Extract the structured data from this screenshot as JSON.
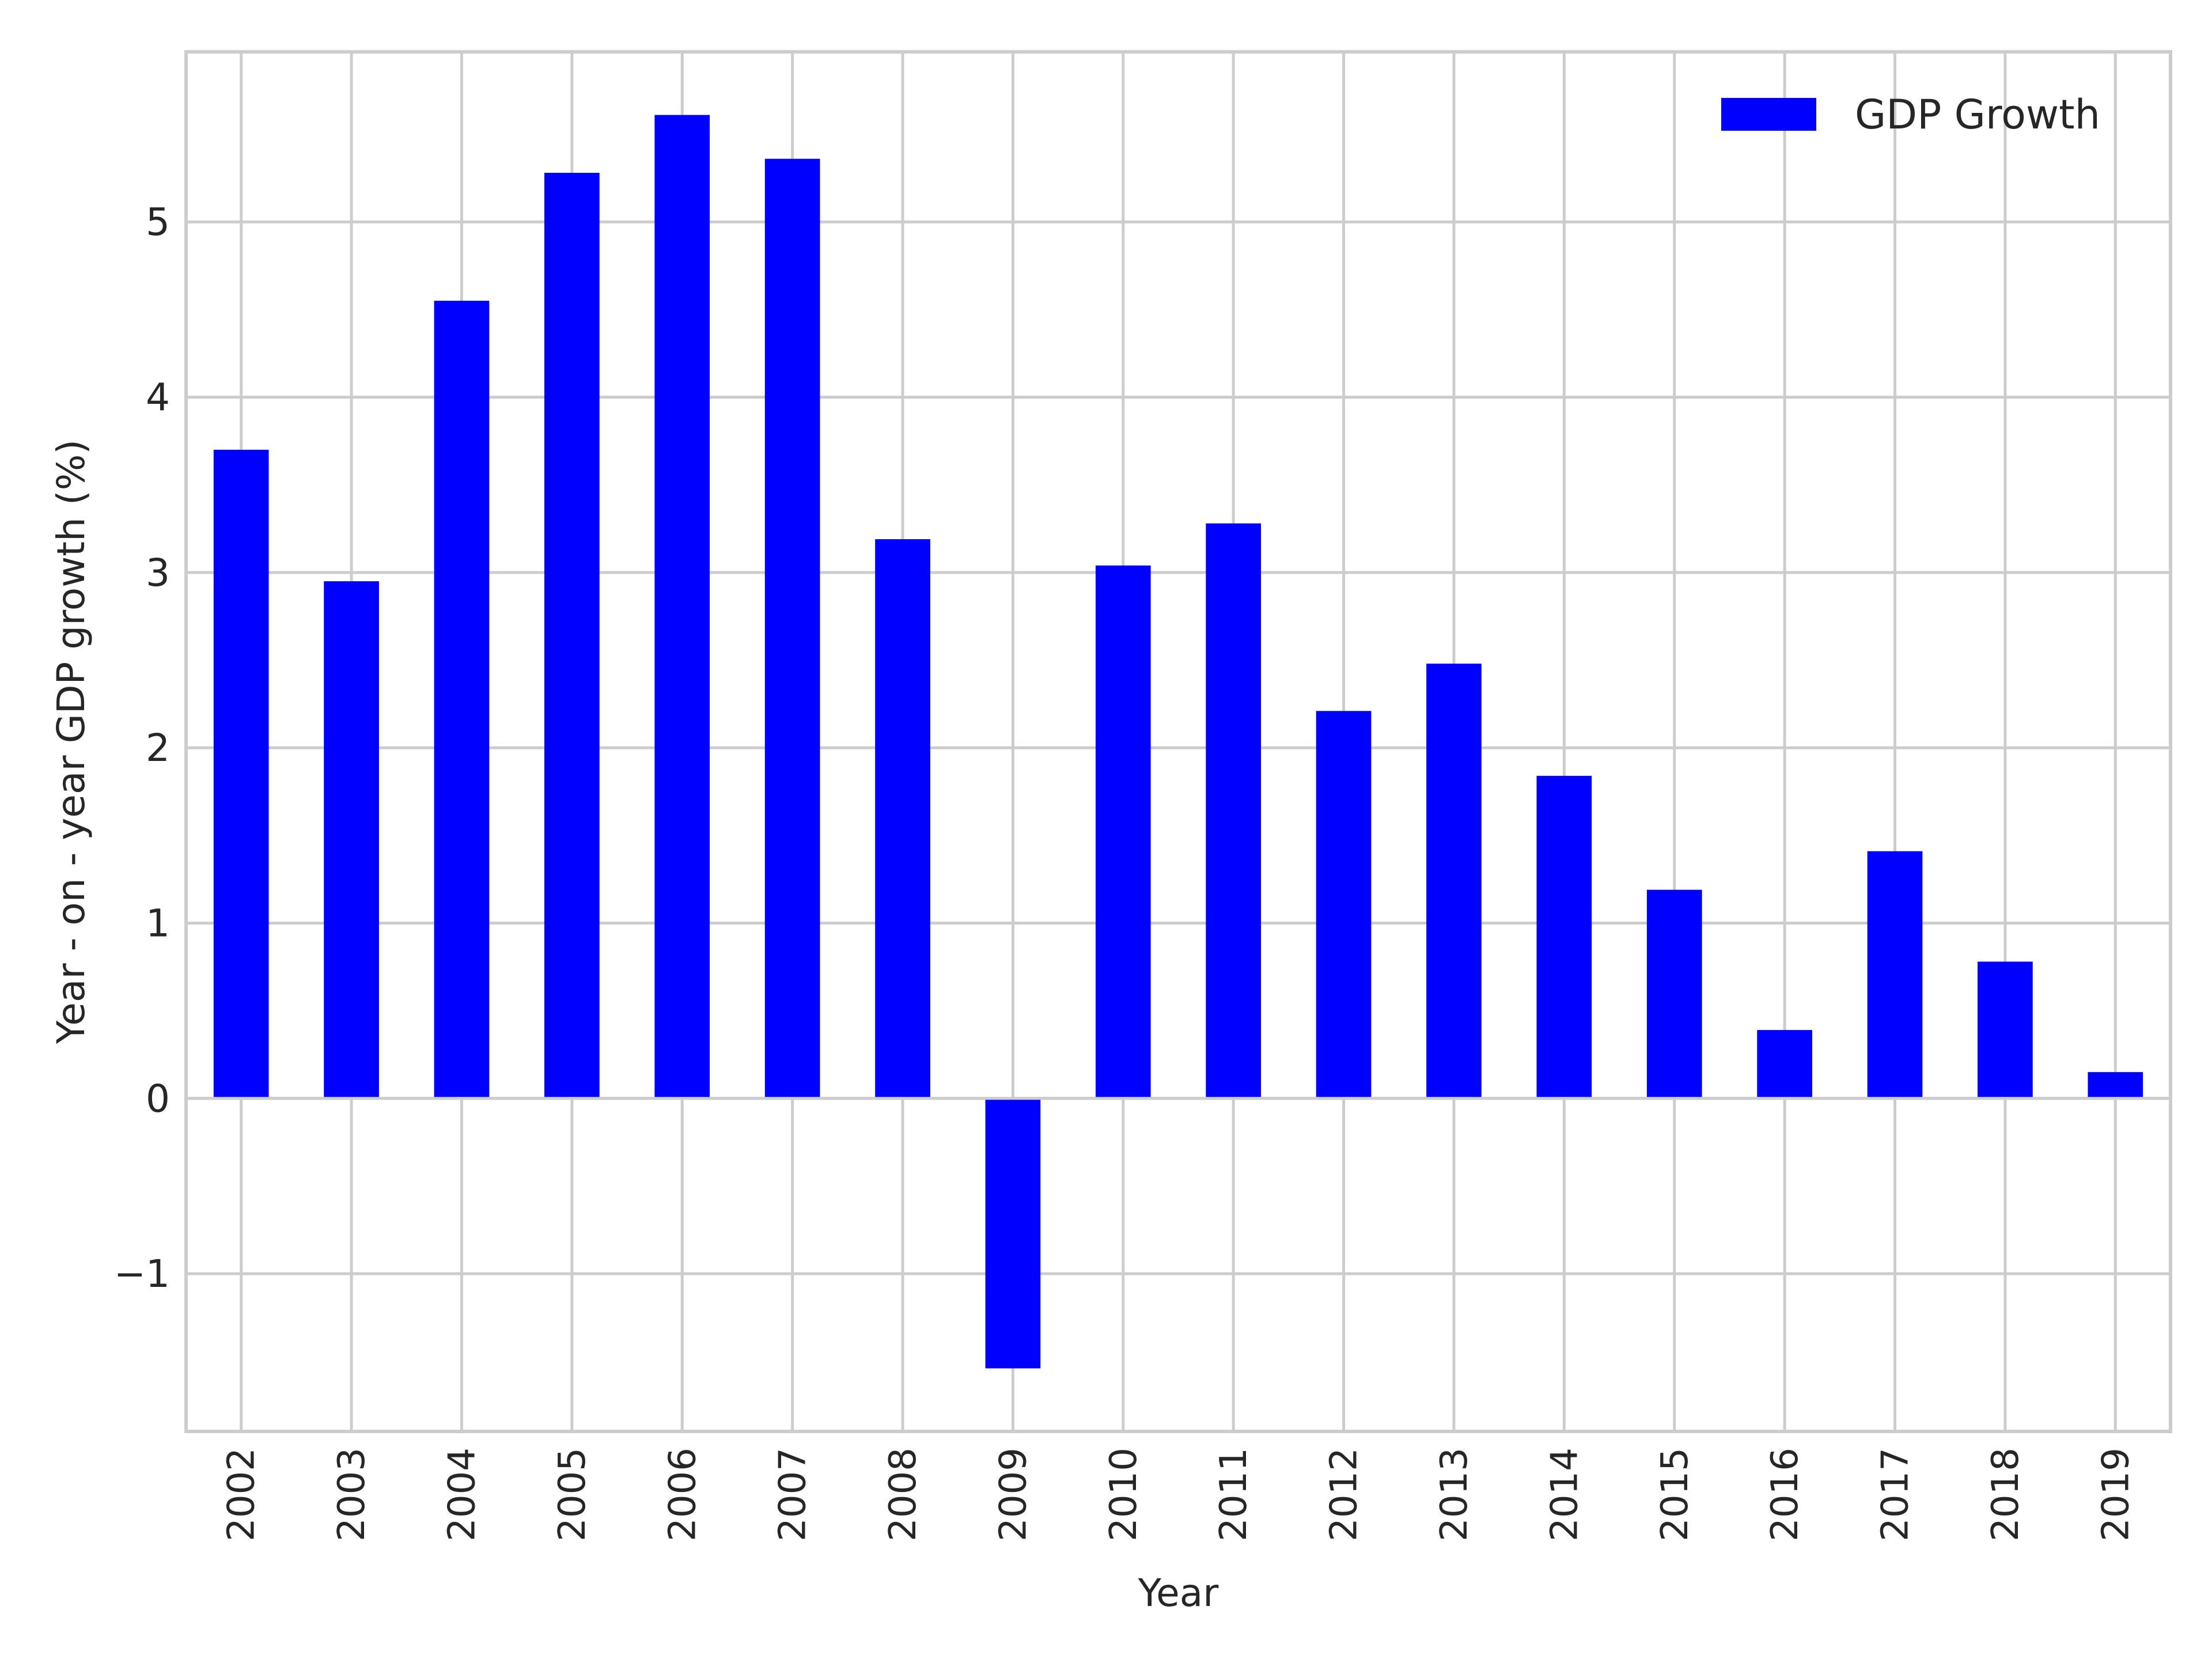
{
  "chart_data": {
    "type": "bar",
    "title": "",
    "xlabel": "Year",
    "ylabel": "Year - on - year GDP growth (%)",
    "categories": [
      "2002",
      "2003",
      "2004",
      "2005",
      "2006",
      "2007",
      "2008",
      "2009",
      "2010",
      "2011",
      "2012",
      "2013",
      "2014",
      "2015",
      "2016",
      "2017",
      "2018",
      "2019"
    ],
    "series": [
      {
        "name": "GDP Growth",
        "color": "#0000ff",
        "values": [
          3.7,
          2.95,
          4.55,
          5.28,
          5.61,
          5.36,
          3.19,
          -1.54,
          3.04,
          3.28,
          2.21,
          2.48,
          1.84,
          1.19,
          0.39,
          1.41,
          0.78,
          0.15
        ]
      }
    ],
    "ylim": [
      -1.9,
      5.97
    ],
    "yticks": [
      -1,
      0,
      1,
      2,
      3,
      4,
      5
    ],
    "ytick_labels": [
      "−1",
      "0",
      "1",
      "2",
      "3",
      "4",
      "5"
    ],
    "grid": true,
    "legend": "top-right",
    "colors": {
      "bar": "#0000ff",
      "grid": "#cccccc",
      "text": "#262626"
    }
  }
}
